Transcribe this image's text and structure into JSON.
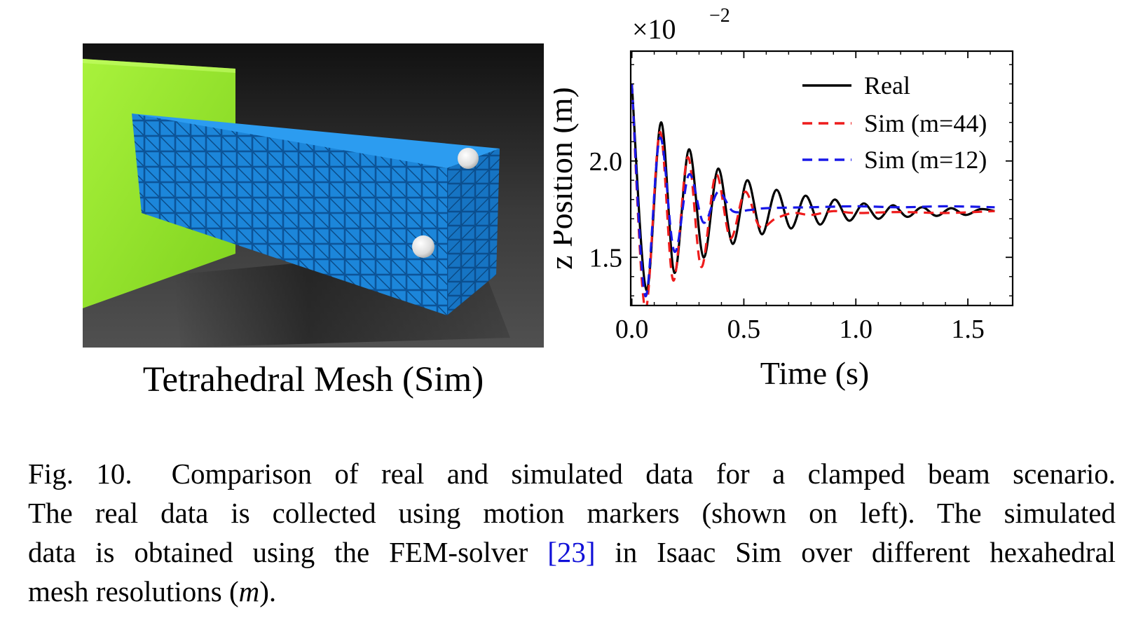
{
  "render": {
    "caption": "Tetrahedral Mesh (Sim)",
    "colors": {
      "clamp": "#9bea2e",
      "beam": "#1e8fe8",
      "background": "#2a2a2a",
      "marker": "#e8e8e8"
    }
  },
  "chart_data": {
    "type": "line",
    "xlabel": "Time (s)",
    "ylabel": "z Position (m)",
    "y_multiplier": "×10",
    "y_multiplier_exponent": "−2",
    "xlim": [
      -0.005,
      1.7
    ],
    "ylim": [
      1.25,
      2.57
    ],
    "xticks": [
      0.0,
      0.5,
      1.0,
      1.5
    ],
    "xtick_labels": [
      "0.0",
      "0.5",
      "1.0",
      "1.5"
    ],
    "yticks": [
      1.5,
      2.0
    ],
    "ytick_labels": [
      "1.5",
      "2.0"
    ],
    "legend_position": "top-right",
    "series": [
      {
        "name": "Real",
        "color": "#000000",
        "style": "solid",
        "x": [
          0.0,
          0.065,
          0.13,
          0.19,
          0.255,
          0.32,
          0.385,
          0.45,
          0.515,
          0.58,
          0.645,
          0.71,
          0.775,
          0.84,
          0.905,
          0.97,
          1.035,
          1.1,
          1.165,
          1.23,
          1.295,
          1.36,
          1.425,
          1.49,
          1.555,
          1.62
        ],
        "y": [
          2.4,
          1.33,
          2.2,
          1.42,
          2.06,
          1.5,
          1.96,
          1.57,
          1.9,
          1.62,
          1.85,
          1.65,
          1.82,
          1.67,
          1.8,
          1.69,
          1.78,
          1.7,
          1.77,
          1.71,
          1.76,
          1.715,
          1.755,
          1.72,
          1.75,
          1.74
        ]
      },
      {
        "name": "Sim (m=44)",
        "color": "#ee1c1c",
        "style": "dashed",
        "x": [
          0.0,
          0.06,
          0.125,
          0.185,
          0.25,
          0.31,
          0.375,
          0.44,
          0.505,
          0.57,
          0.64,
          0.72,
          0.8,
          0.9,
          1.0,
          1.2,
          1.4,
          1.62
        ],
        "y": [
          2.4,
          1.23,
          2.15,
          1.38,
          2.02,
          1.45,
          1.93,
          1.6,
          1.84,
          1.66,
          1.7,
          1.73,
          1.72,
          1.74,
          1.73,
          1.735,
          1.73,
          1.74
        ],
        "styleDash": "14 9"
      },
      {
        "name": "Sim (m=12)",
        "color": "#1818e8",
        "style": "dashed",
        "x": [
          0.0,
          0.06,
          0.125,
          0.19,
          0.255,
          0.32,
          0.385,
          0.45,
          0.52,
          0.6,
          0.8,
          1.0,
          1.2,
          1.4,
          1.62
        ],
        "y": [
          2.4,
          1.3,
          2.12,
          1.53,
          1.93,
          1.68,
          1.84,
          1.74,
          1.745,
          1.755,
          1.76,
          1.765,
          1.76,
          1.765,
          1.76
        ]
      }
    ]
  },
  "caption": {
    "label": "Fig. 10.",
    "line1": "Comparison of real and simulated data for a clamped beam scenario.",
    "line2": "The real data is collected using motion markers (shown on left). The simulated",
    "line3_before": "data is obtained using the FEM-solver",
    "line3_ref": "[23]",
    "line3_after": "in Isaac Sim over different hexahedral",
    "line4_before": "mesh resolutions (",
    "line4_math": "m",
    "line4_after": ")."
  }
}
